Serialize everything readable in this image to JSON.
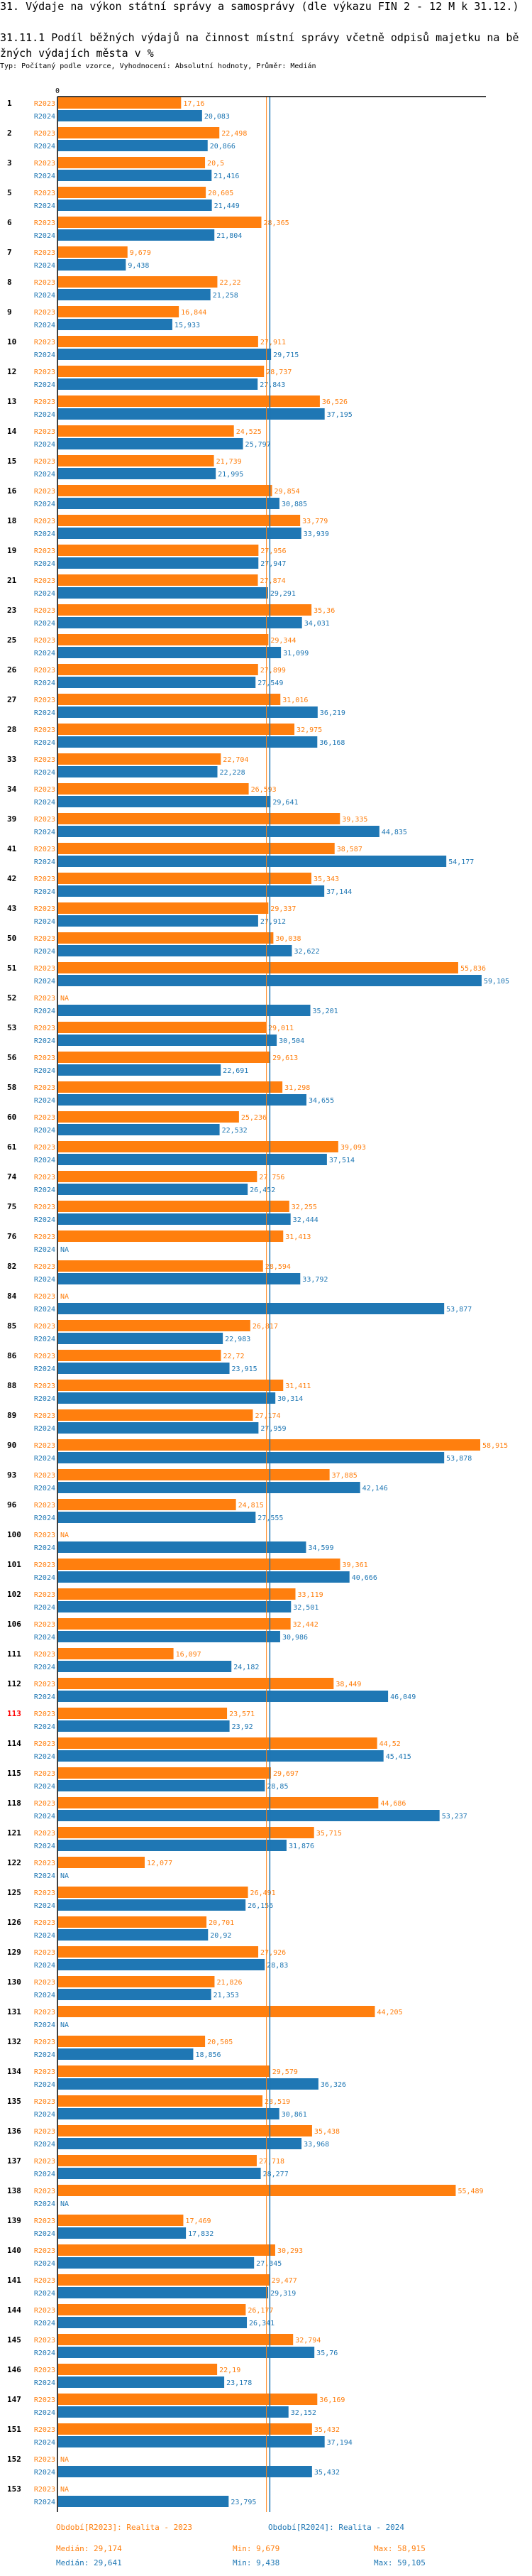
{
  "header": {
    "title": "31. Výdaje na výkon státní správy a samosprávy (dle výkazu FIN 2 - 12 M k 31.12.)",
    "subtitle": "31.11.1 Podíl běžných výdajů na činnost místní správy včetně odpisů majetku na běžných výdajích města v %",
    "info": "Typ: Počítaný podle vzorce, Vyhodnocení: Absolutní hodnoty, Průměr: Medián"
  },
  "chart_data": {
    "type": "bar",
    "orientation": "horizontal",
    "axis_zero_label": "0",
    "na_label": "NA",
    "highlight_category": "113",
    "highlight_color": "#ff0000",
    "series": [
      {
        "name": "R2023",
        "color": "#ff7f0e",
        "legend": "Období[R2023]: Realita - 2023",
        "median": 29.174,
        "median_label": "Medián: 29,174",
        "min_label": "Min: 9,679",
        "max_label": "Max: 58,915"
      },
      {
        "name": "R2024",
        "color": "#1f77b4",
        "legend": "Období[R2024]: Realita - 2024",
        "median": 29.641,
        "median_label": "Medián: 29,641",
        "min_label": "Min: 9,438",
        "max_label": "Max: 59,105"
      }
    ],
    "categories": [
      "1",
      "2",
      "3",
      "5",
      "6",
      "7",
      "8",
      "9",
      "10",
      "12",
      "13",
      "14",
      "15",
      "16",
      "18",
      "19",
      "21",
      "23",
      "25",
      "26",
      "27",
      "28",
      "33",
      "34",
      "39",
      "41",
      "42",
      "43",
      "50",
      "51",
      "52",
      "53",
      "56",
      "58",
      "60",
      "61",
      "74",
      "75",
      "76",
      "82",
      "84",
      "85",
      "86",
      "88",
      "89",
      "90",
      "93",
      "96",
      "100",
      "101",
      "102",
      "106",
      "111",
      "112",
      "113",
      "114",
      "115",
      "118",
      "121",
      "122",
      "125",
      "126",
      "129",
      "130",
      "131",
      "132",
      "134",
      "135",
      "136",
      "137",
      "138",
      "139",
      "140",
      "141",
      "144",
      "145",
      "146",
      "147",
      "151",
      "152",
      "153"
    ],
    "values": {
      "R2023": [
        17.16,
        22.498,
        20.5,
        20.605,
        28.365,
        9.679,
        22.22,
        16.844,
        27.911,
        28.737,
        36.526,
        24.525,
        21.739,
        29.854,
        33.779,
        27.956,
        27.874,
        35.36,
        29.344,
        27.899,
        31.016,
        32.975,
        22.704,
        26.593,
        39.335,
        38.587,
        35.343,
        29.337,
        30.038,
        55.836,
        null,
        29.011,
        29.613,
        31.298,
        25.236,
        39.093,
        27.756,
        32.255,
        31.413,
        28.594,
        null,
        26.817,
        22.72,
        31.411,
        27.174,
        58.915,
        37.885,
        24.815,
        null,
        39.361,
        33.119,
        32.442,
        16.097,
        38.449,
        23.571,
        44.52,
        29.697,
        44.686,
        35.715,
        12.077,
        26.491,
        20.701,
        27.926,
        21.826,
        44.205,
        20.505,
        29.579,
        28.519,
        35.438,
        27.718,
        55.489,
        17.469,
        30.293,
        29.477,
        26.177,
        32.794,
        22.19,
        36.169,
        35.432,
        null,
        null
      ],
      "R2024": [
        20.083,
        20.866,
        21.416,
        21.449,
        21.804,
        9.438,
        21.258,
        15.933,
        29.715,
        27.843,
        37.195,
        25.797,
        21.995,
        30.885,
        33.939,
        27.947,
        29.291,
        34.031,
        31.099,
        27.549,
        36.219,
        36.168,
        22.228,
        29.641,
        44.835,
        54.177,
        37.144,
        27.912,
        32.622,
        59.105,
        35.201,
        30.504,
        22.691,
        34.655,
        22.532,
        37.514,
        26.452,
        32.444,
        null,
        33.792,
        53.877,
        22.983,
        23.915,
        30.314,
        27.959,
        53.878,
        42.146,
        27.555,
        34.599,
        40.666,
        32.501,
        30.986,
        24.182,
        46.049,
        23.92,
        45.415,
        28.85,
        53.237,
        31.876,
        null,
        26.156,
        20.92,
        28.83,
        21.353,
        null,
        18.856,
        36.326,
        30.861,
        33.968,
        28.277,
        null,
        17.832,
        27.345,
        29.319,
        26.341,
        35.76,
        23.178,
        32.152,
        37.194,
        35.432,
        23.795
      ]
    }
  }
}
